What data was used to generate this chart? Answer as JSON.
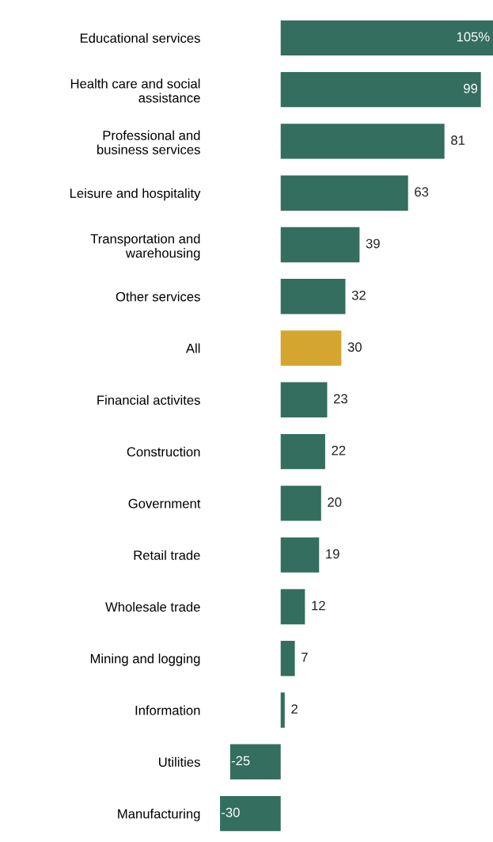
{
  "chart_data": {
    "type": "bar",
    "orientation": "horizontal",
    "categories": [
      "Educational services",
      "Health care and social\nassistance",
      "Professional and\nbusiness services",
      "Leisure and hospitality",
      "Transportation and\nwarehousing",
      "Other services",
      "All",
      "Financial activites",
      "Construction",
      "Government",
      "Retail trade",
      "Wholesale trade",
      "Mining and logging",
      "Information",
      "Utilities",
      "Manufacturing"
    ],
    "values": [
      105,
      99,
      81,
      63,
      39,
      32,
      30,
      23,
      22,
      20,
      19,
      12,
      7,
      2,
      -25,
      -30
    ],
    "colors": [
      "#336e5f",
      "#336e5f",
      "#336e5f",
      "#336e5f",
      "#336e5f",
      "#336e5f",
      "#d4a62f",
      "#336e5f",
      "#336e5f",
      "#336e5f",
      "#336e5f",
      "#336e5f",
      "#336e5f",
      "#336e5f",
      "#336e5f",
      "#336e5f"
    ],
    "value_labels": [
      "105%",
      "99",
      "81",
      "63",
      "39",
      "32",
      "30",
      "23",
      "22",
      "20",
      "19",
      "12",
      "7",
      "2",
      "-25",
      "-30"
    ],
    "tick_labels": "y"
  }
}
